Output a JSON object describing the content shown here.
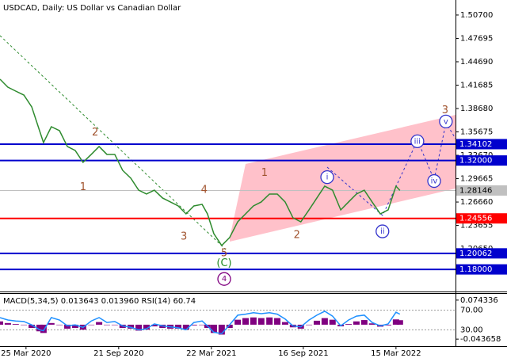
{
  "chart_data": {
    "type": "line",
    "title": "USDCAD, Daily:  US Dollar vs Canadian Dollar",
    "xlim": [
      0,
      127.8
    ],
    "xticks": [
      {
        "value": 7.3,
        "label": "25 Mar 2020"
      },
      {
        "value": 33.3,
        "label": "21 Sep 2020"
      },
      {
        "value": 59.3,
        "label": "22 Mar 2021"
      },
      {
        "value": 85.1,
        "label": "16 Sep 2021"
      },
      {
        "value": 111.1,
        "label": "15 Mar 2022"
      }
    ],
    "ylim": [
      1.1516,
      1.5263
    ],
    "yticks": [
      {
        "value": 1.507,
        "label": "1.50700"
      },
      {
        "value": 1.47695,
        "label": "1.47695"
      },
      {
        "value": 1.4469,
        "label": "1.44690"
      },
      {
        "value": 1.41685,
        "label": "1.41685"
      },
      {
        "value": 1.3868,
        "label": "1.38680"
      },
      {
        "value": 1.35675,
        "label": "1.35675"
      },
      {
        "value": 1.3267,
        "label": "1.32670"
      },
      {
        "value": 1.29665,
        "label": "1.29665"
      },
      {
        "value": 1.2666,
        "label": "1.26660"
      },
      {
        "value": 1.23655,
        "label": "1.23655"
      },
      {
        "value": 1.2065,
        "label": "1.20650"
      }
    ],
    "x": [
      0,
      2.2,
      4.4,
      6.7,
      8.9,
      11.1,
      12.2,
      14.4,
      16.7,
      18.9,
      21.1,
      23.3,
      25.6,
      27.8,
      30,
      32.2,
      34.4,
      36.7,
      38.9,
      41.1,
      43.3,
      45.6,
      47.8,
      50,
      52.2,
      54.4,
      56.7,
      58.2,
      60,
      62.2,
      64.4,
      66.7,
      68.9,
      71.1,
      73.3,
      75.6,
      77.8,
      80,
      82.2,
      84.4,
      86.7,
      88.9,
      91.1,
      93.3,
      95.6,
      97.8,
      100,
      102.2,
      104.4,
      106.7,
      108.9,
      111.1,
      112.2
    ],
    "series": [
      {
        "name": "USDCAD",
        "color": "#2e8b2e",
        "values": [
          1.4245,
          1.4143,
          1.4092,
          1.4041,
          1.3889,
          1.3583,
          1.343,
          1.3634,
          1.3583,
          1.338,
          1.3329,
          1.3176,
          1.3278,
          1.338,
          1.3278,
          1.3278,
          1.3074,
          1.2972,
          1.2819,
          1.2769,
          1.2819,
          1.2718,
          1.2667,
          1.2616,
          1.2514,
          1.2616,
          1.2636,
          1.2514,
          1.2259,
          1.2107,
          1.2208,
          1.2412,
          1.2514,
          1.2616,
          1.2667,
          1.2769,
          1.2769,
          1.2667,
          1.2463,
          1.2412,
          1.2565,
          1.2718,
          1.287,
          1.2819,
          1.2565,
          1.2667,
          1.2769,
          1.2819,
          1.2667,
          1.2514,
          1.2565,
          1.287,
          1.2815
        ]
      }
    ],
    "levels": [
      {
        "value": 1.34102,
        "label": "1.34102",
        "color": "#0000cd"
      },
      {
        "value": 1.32,
        "label": "1.32000",
        "color": "#0000cd"
      },
      {
        "value": 1.28146,
        "label": "1.28146",
        "color": "#c0c0c0"
      },
      {
        "value": 1.24556,
        "label": "1.24556",
        "color": "#ff0000"
      },
      {
        "value": 1.20062,
        "label": "1.20062",
        "color": "#0000cd"
      },
      {
        "value": 1.18,
        "label": "1.18000",
        "color": "#0000cd"
      }
    ],
    "annotations": [
      {
        "text": "2",
        "x": 26.7,
        "y": 1.3555,
        "color": "#a0522d",
        "circled": false
      },
      {
        "text": "1",
        "x": 23.3,
        "y": 1.2857,
        "color": "#a0522d",
        "circled": false
      },
      {
        "text": "3",
        "x": 51.6,
        "y": 1.2218,
        "color": "#a0522d",
        "circled": false
      },
      {
        "text": "4",
        "x": 57.3,
        "y": 1.2819,
        "color": "#a0522d",
        "circled": false
      },
      {
        "text": "5",
        "x": 62.9,
        "y": 1.2004,
        "color": "#a0522d",
        "circled": false
      },
      {
        "text": "(C)",
        "x": 62.9,
        "y": 1.188,
        "color": "#228b22",
        "circled": false
      },
      {
        "text": "4",
        "x": 62.9,
        "y": 1.1677,
        "color": "#800080",
        "circled": true
      },
      {
        "text": "1",
        "x": 74.2,
        "y": 1.3036,
        "color": "#a0522d",
        "circled": false
      },
      {
        "text": "2",
        "x": 83.3,
        "y": 1.2238,
        "color": "#a0522d",
        "circled": false
      },
      {
        "text": "3",
        "x": 124.9,
        "y": 1.3843,
        "color": "#a0522d",
        "circled": false
      },
      {
        "text": "i",
        "x": 91.8,
        "y": 1.2986,
        "color": "#3333cc",
        "circled": true
      },
      {
        "text": "ii",
        "x": 107.3,
        "y": 1.2289,
        "color": "#3333cc",
        "circled": true
      },
      {
        "text": "iii",
        "x": 117.1,
        "y": 1.3447,
        "color": "#3333cc",
        "circled": true
      },
      {
        "text": "iv",
        "x": 121.8,
        "y": 1.2936,
        "color": "#3333cc",
        "circled": true
      },
      {
        "text": "v",
        "x": 125.1,
        "y": 1.3701,
        "color": "#3333cc",
        "circled": true
      }
    ],
    "indicator": {
      "label": "MACD(5,34,5) 0.013643 0.013960 RSI(14) 60.74",
      "macd_lim": [
        -0.0649,
        0.0932
      ],
      "macd_ticks": [
        0.074336,
        -0.043658
      ],
      "rsi_lim": [
        -3.6,
        103.6
      ],
      "rsi_ticks": [
        {
          "value": 70,
          "label": "70.00"
        },
        {
          "value": 30,
          "label": "30.00"
        }
      ],
      "macd_color": "#800080",
      "rsi_color": "#1e90ff",
      "macd": [
        0.01,
        0.005,
        0.002,
        0,
        -0.01,
        -0.02,
        -0.025,
        0.005,
        0,
        -0.012,
        -0.01,
        -0.015,
        0,
        0.008,
        0,
        0,
        -0.01,
        -0.012,
        -0.018,
        -0.015,
        -0.005,
        -0.01,
        -0.012,
        -0.012,
        -0.015,
        -0.002,
        0,
        -0.01,
        -0.025,
        -0.03,
        -0.01,
        0.015,
        0.02,
        0.022,
        0.02,
        0.022,
        0.02,
        0.008,
        -0.008,
        -0.012,
        0,
        0.012,
        0.02,
        0.015,
        -0.005,
        0.002,
        0.01,
        0.014,
        0.004,
        -0.006,
        -0.002,
        0.016,
        0.0136
      ],
      "rsi": [
        55,
        50,
        48,
        47,
        40,
        30,
        28,
        55,
        50,
        38,
        40,
        35,
        48,
        55,
        45,
        47,
        38,
        35,
        30,
        32,
        42,
        38,
        36,
        34,
        30,
        45,
        48,
        38,
        25,
        22,
        40,
        60,
        62,
        65,
        63,
        65,
        62,
        52,
        38,
        36,
        50,
        60,
        68,
        58,
        38,
        50,
        58,
        60,
        45,
        38,
        42,
        66,
        62
      ]
    }
  }
}
